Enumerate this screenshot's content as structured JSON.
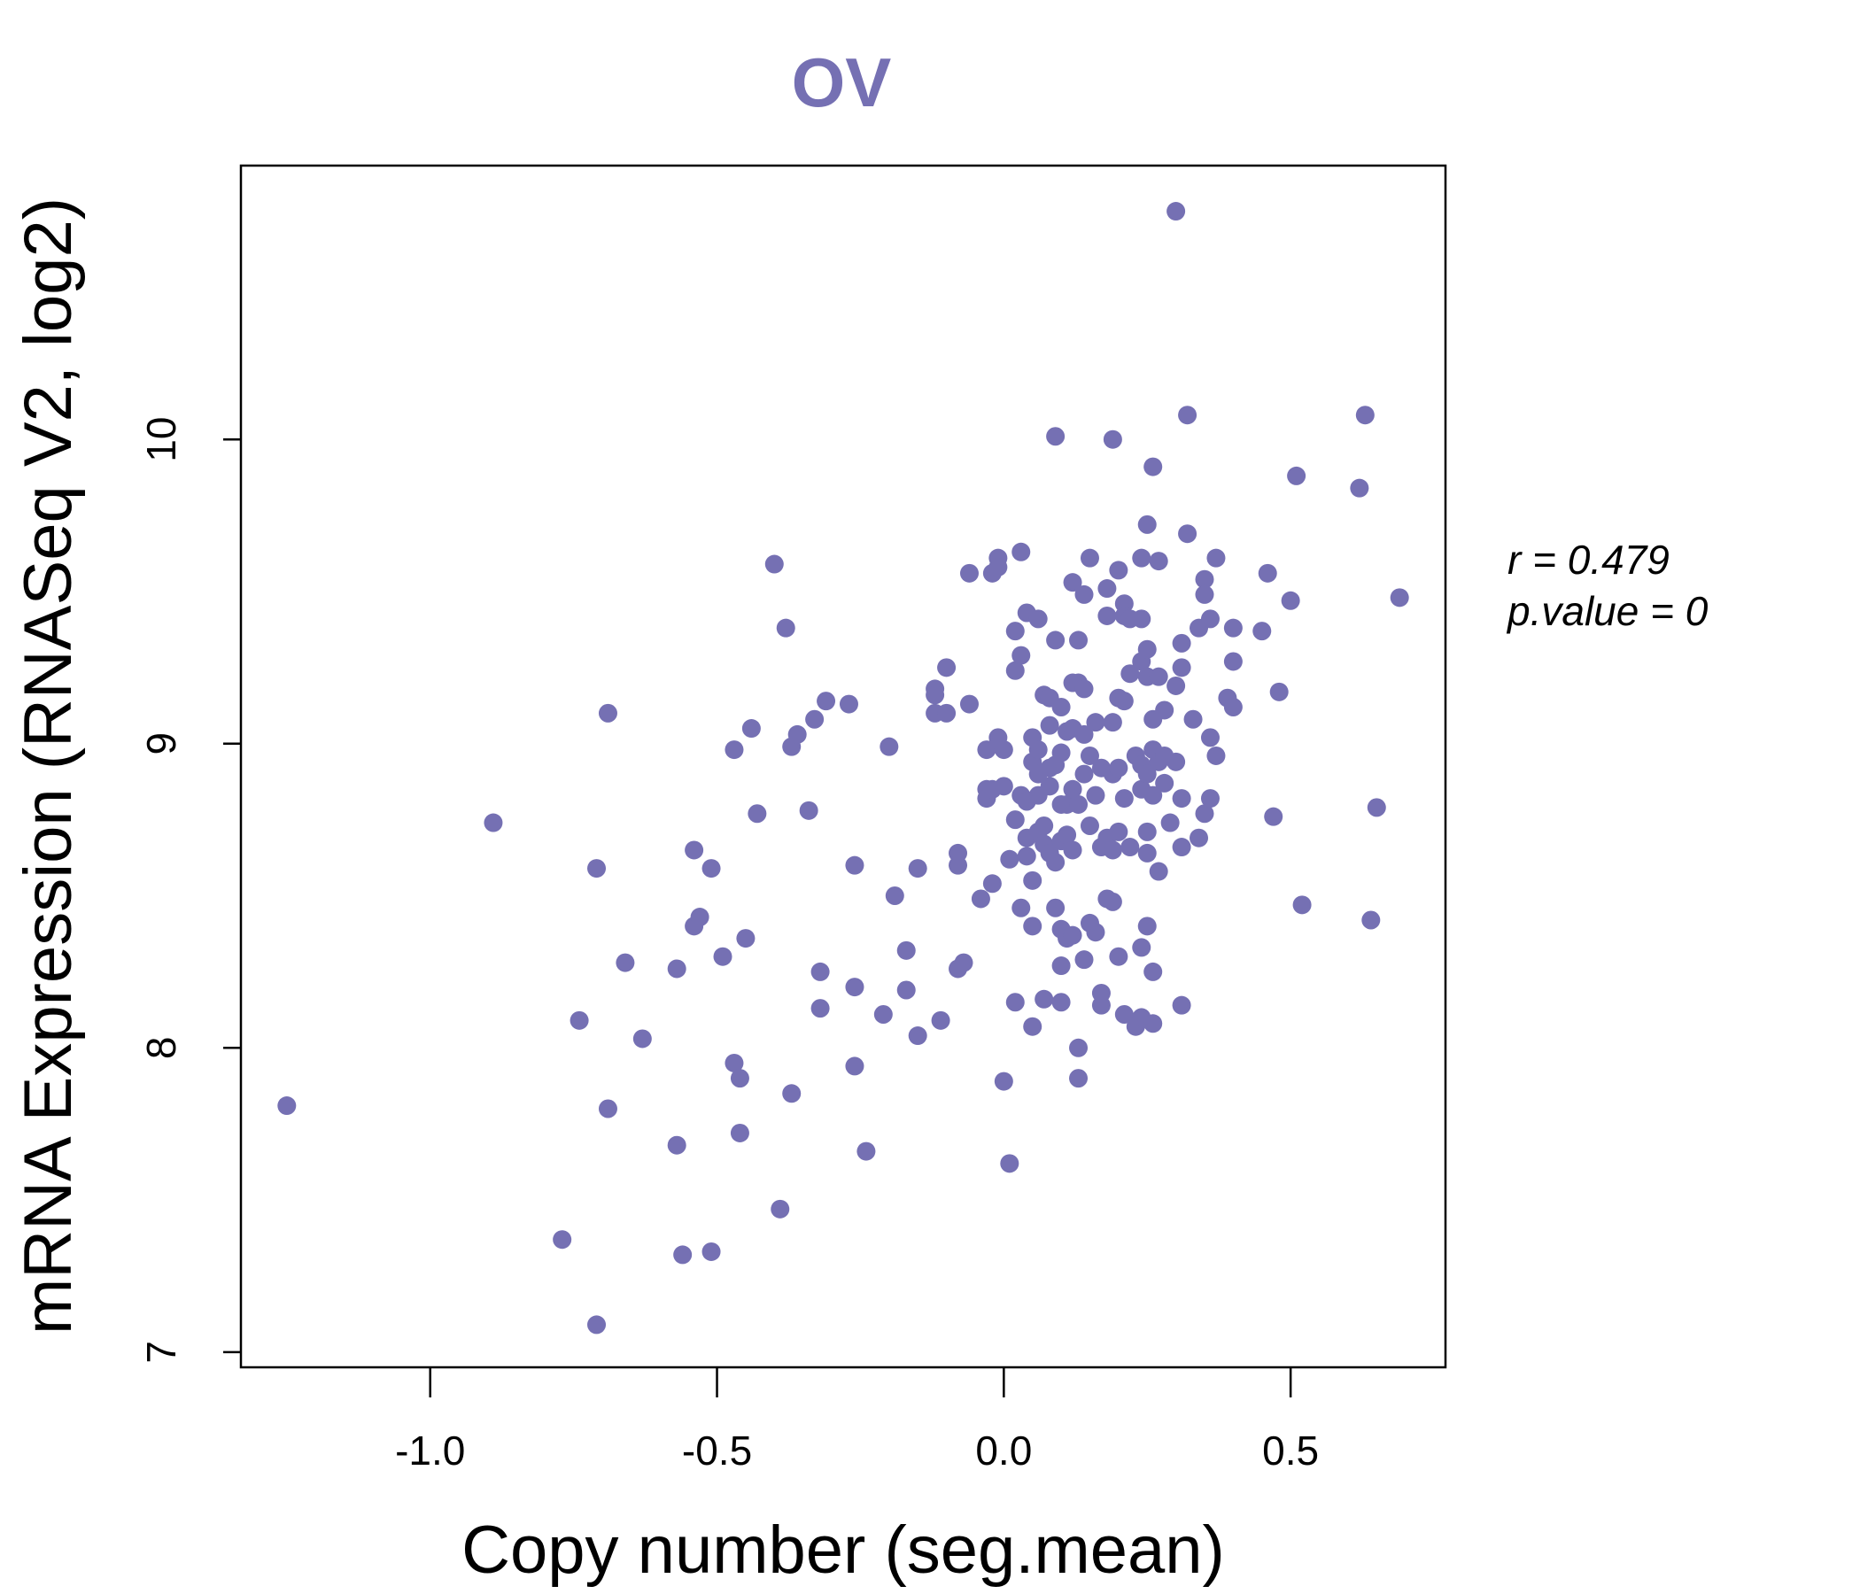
{
  "chart_data": {
    "type": "scatter",
    "title": "OV",
    "xlabel": "Copy number (seg.mean)",
    "ylabel": "mRNA Expression (RNASeq V2, log2)",
    "xlim": [
      -1.33,
      0.77
    ],
    "ylim": [
      6.95,
      10.9
    ],
    "xticks": [
      -1.0,
      -0.5,
      0.0,
      0.5
    ],
    "xtick_labels": [
      "-1.0",
      "-0.5",
      "0.0",
      "0.5"
    ],
    "yticks": [
      7,
      8,
      9,
      10
    ],
    "ytick_labels": [
      "7",
      "8",
      "9",
      "10"
    ],
    "annotation_r": "r = 0.479",
    "annotation_p": "p.value = 0",
    "point_color": "#7570b3",
    "grid": false,
    "points": [
      [
        -1.25,
        7.81
      ],
      [
        -0.89,
        8.74
      ],
      [
        -0.77,
        7.37
      ],
      [
        -0.74,
        8.09
      ],
      [
        -0.71,
        8.59
      ],
      [
        -0.71,
        7.09
      ],
      [
        -0.69,
        9.1
      ],
      [
        -0.69,
        7.8
      ],
      [
        -0.66,
        8.28
      ],
      [
        -0.63,
        8.03
      ],
      [
        -0.57,
        8.26
      ],
      [
        -0.57,
        7.68
      ],
      [
        -0.56,
        7.32
      ],
      [
        -0.54,
        8.65
      ],
      [
        -0.54,
        8.4
      ],
      [
        -0.53,
        8.43
      ],
      [
        -0.51,
        7.33
      ],
      [
        -0.51,
        8.59
      ],
      [
        -0.49,
        8.3
      ],
      [
        -0.47,
        8.98
      ],
      [
        -0.47,
        7.95
      ],
      [
        -0.46,
        7.9
      ],
      [
        -0.46,
        7.72
      ],
      [
        -0.45,
        8.36
      ],
      [
        -0.44,
        9.05
      ],
      [
        -0.43,
        8.77
      ],
      [
        -0.4,
        9.59
      ],
      [
        -0.39,
        7.47
      ],
      [
        -0.38,
        9.38
      ],
      [
        -0.37,
        7.85
      ],
      [
        -0.37,
        8.99
      ],
      [
        -0.36,
        9.03
      ],
      [
        -0.34,
        8.78
      ],
      [
        -0.33,
        9.08
      ],
      [
        -0.32,
        8.25
      ],
      [
        -0.32,
        8.13
      ],
      [
        -0.31,
        9.14
      ],
      [
        -0.27,
        9.13
      ],
      [
        -0.26,
        8.6
      ],
      [
        -0.26,
        8.2
      ],
      [
        -0.26,
        7.94
      ],
      [
        -0.24,
        7.66
      ],
      [
        -0.21,
        8.11
      ],
      [
        -0.2,
        8.99
      ],
      [
        -0.19,
        8.5
      ],
      [
        -0.17,
        8.32
      ],
      [
        -0.17,
        8.19
      ],
      [
        -0.15,
        8.04
      ],
      [
        -0.15,
        8.59
      ],
      [
        -0.12,
        9.18
      ],
      [
        -0.12,
        9.16
      ],
      [
        -0.12,
        9.1
      ],
      [
        -0.11,
        8.09
      ],
      [
        -0.1,
        9.25
      ],
      [
        -0.1,
        9.1
      ],
      [
        -0.08,
        8.64
      ],
      [
        -0.08,
        8.6
      ],
      [
        -0.08,
        8.26
      ],
      [
        -0.07,
        8.28
      ],
      [
        -0.06,
        9.56
      ],
      [
        -0.06,
        9.13
      ],
      [
        -0.04,
        8.49
      ],
      [
        -0.03,
        8.98
      ],
      [
        -0.03,
        8.85
      ],
      [
        -0.03,
        8.82
      ],
      [
        -0.02,
        8.54
      ],
      [
        -0.02,
        8.85
      ],
      [
        -0.02,
        9.56
      ],
      [
        -0.01,
        9.61
      ],
      [
        -0.01,
        9.58
      ],
      [
        -0.01,
        9.02
      ],
      [
        0.0,
        8.98
      ],
      [
        0.0,
        7.89
      ],
      [
        0.0,
        8.86
      ],
      [
        0.01,
        8.62
      ],
      [
        0.01,
        7.62
      ],
      [
        0.02,
        9.37
      ],
      [
        0.02,
        9.24
      ],
      [
        0.02,
        8.15
      ],
      [
        0.02,
        8.75
      ],
      [
        0.03,
        9.29
      ],
      [
        0.03,
        8.83
      ],
      [
        0.03,
        8.46
      ],
      [
        0.03,
        9.63
      ],
      [
        0.04,
        8.81
      ],
      [
        0.04,
        9.43
      ],
      [
        0.04,
        8.69
      ],
      [
        0.04,
        8.63
      ],
      [
        0.05,
        8.07
      ],
      [
        0.05,
        9.02
      ],
      [
        0.05,
        8.94
      ],
      [
        0.05,
        8.4
      ],
      [
        0.05,
        8.55
      ],
      [
        0.06,
        9.41
      ],
      [
        0.06,
        8.98
      ],
      [
        0.06,
        8.9
      ],
      [
        0.06,
        8.83
      ],
      [
        0.06,
        8.71
      ],
      [
        0.07,
        9.16
      ],
      [
        0.07,
        8.73
      ],
      [
        0.07,
        8.67
      ],
      [
        0.07,
        8.16
      ],
      [
        0.08,
        9.06
      ],
      [
        0.08,
        8.92
      ],
      [
        0.08,
        8.86
      ],
      [
        0.08,
        8.64
      ],
      [
        0.08,
        9.15
      ],
      [
        0.09,
        10.01
      ],
      [
        0.09,
        9.34
      ],
      [
        0.09,
        8.93
      ],
      [
        0.09,
        8.61
      ],
      [
        0.09,
        8.46
      ],
      [
        0.1,
        9.12
      ],
      [
        0.1,
        8.97
      ],
      [
        0.1,
        8.8
      ],
      [
        0.1,
        8.68
      ],
      [
        0.1,
        8.39
      ],
      [
        0.1,
        8.27
      ],
      [
        0.1,
        8.15
      ],
      [
        0.11,
        9.04
      ],
      [
        0.11,
        8.8
      ],
      [
        0.11,
        8.7
      ],
      [
        0.11,
        8.36
      ],
      [
        0.12,
        9.53
      ],
      [
        0.12,
        9.2
      ],
      [
        0.12,
        9.05
      ],
      [
        0.12,
        8.85
      ],
      [
        0.12,
        8.65
      ],
      [
        0.12,
        8.37
      ],
      [
        0.13,
        9.34
      ],
      [
        0.13,
        9.2
      ],
      [
        0.13,
        8.8
      ],
      [
        0.13,
        8.0
      ],
      [
        0.13,
        7.9
      ],
      [
        0.14,
        9.49
      ],
      [
        0.14,
        9.18
      ],
      [
        0.14,
        9.03
      ],
      [
        0.14,
        8.9
      ],
      [
        0.14,
        8.29
      ],
      [
        0.15,
        9.61
      ],
      [
        0.15,
        8.96
      ],
      [
        0.15,
        8.73
      ],
      [
        0.15,
        8.41
      ],
      [
        0.16,
        9.07
      ],
      [
        0.16,
        8.83
      ],
      [
        0.16,
        8.38
      ],
      [
        0.17,
        8.92
      ],
      [
        0.17,
        8.66
      ],
      [
        0.17,
        8.14
      ],
      [
        0.17,
        8.18
      ],
      [
        0.18,
        9.51
      ],
      [
        0.18,
        9.42
      ],
      [
        0.18,
        8.69
      ],
      [
        0.18,
        8.49
      ],
      [
        0.19,
        10.0
      ],
      [
        0.19,
        9.07
      ],
      [
        0.19,
        8.9
      ],
      [
        0.19,
        8.65
      ],
      [
        0.19,
        8.48
      ],
      [
        0.2,
        9.57
      ],
      [
        0.2,
        9.15
      ],
      [
        0.2,
        8.92
      ],
      [
        0.2,
        8.71
      ],
      [
        0.2,
        8.3
      ],
      [
        0.21,
        9.46
      ],
      [
        0.21,
        9.42
      ],
      [
        0.21,
        9.14
      ],
      [
        0.21,
        8.82
      ],
      [
        0.21,
        8.11
      ],
      [
        0.22,
        9.23
      ],
      [
        0.22,
        9.41
      ],
      [
        0.22,
        8.66
      ],
      [
        0.23,
        8.07
      ],
      [
        0.23,
        8.96
      ],
      [
        0.24,
        9.61
      ],
      [
        0.24,
        9.41
      ],
      [
        0.24,
        9.27
      ],
      [
        0.24,
        8.93
      ],
      [
        0.24,
        8.85
      ],
      [
        0.24,
        8.33
      ],
      [
        0.24,
        8.1
      ],
      [
        0.25,
        9.72
      ],
      [
        0.25,
        9.31
      ],
      [
        0.25,
        9.22
      ],
      [
        0.25,
        8.9
      ],
      [
        0.25,
        8.71
      ],
      [
        0.25,
        8.64
      ],
      [
        0.25,
        8.4
      ],
      [
        0.26,
        9.91
      ],
      [
        0.26,
        9.08
      ],
      [
        0.26,
        8.98
      ],
      [
        0.26,
        8.83
      ],
      [
        0.26,
        8.25
      ],
      [
        0.26,
        8.08
      ],
      [
        0.27,
        9.6
      ],
      [
        0.27,
        9.22
      ],
      [
        0.27,
        8.94
      ],
      [
        0.27,
        8.58
      ],
      [
        0.28,
        9.11
      ],
      [
        0.28,
        8.96
      ],
      [
        0.28,
        8.87
      ],
      [
        0.29,
        8.74
      ],
      [
        0.3,
        10.75
      ],
      [
        0.3,
        9.19
      ],
      [
        0.3,
        8.94
      ],
      [
        0.31,
        9.33
      ],
      [
        0.31,
        9.25
      ],
      [
        0.31,
        8.82
      ],
      [
        0.31,
        8.66
      ],
      [
        0.31,
        8.14
      ],
      [
        0.32,
        10.08
      ],
      [
        0.32,
        9.69
      ],
      [
        0.33,
        9.08
      ],
      [
        0.34,
        9.38
      ],
      [
        0.34,
        8.69
      ],
      [
        0.35,
        9.54
      ],
      [
        0.35,
        9.49
      ],
      [
        0.35,
        8.77
      ],
      [
        0.36,
        9.41
      ],
      [
        0.36,
        9.02
      ],
      [
        0.36,
        8.82
      ],
      [
        0.37,
        9.61
      ],
      [
        0.37,
        8.96
      ],
      [
        0.39,
        9.15
      ],
      [
        0.4,
        9.12
      ],
      [
        0.4,
        9.38
      ],
      [
        0.4,
        9.27
      ],
      [
        0.45,
        9.37
      ],
      [
        0.46,
        9.56
      ],
      [
        0.47,
        8.76
      ],
      [
        0.48,
        9.17
      ],
      [
        0.5,
        9.47
      ],
      [
        0.51,
        9.88
      ],
      [
        0.52,
        8.47
      ],
      [
        0.62,
        9.84
      ],
      [
        0.63,
        10.08
      ],
      [
        0.64,
        8.42
      ],
      [
        0.65,
        8.79
      ],
      [
        0.69,
        9.48
      ]
    ]
  }
}
